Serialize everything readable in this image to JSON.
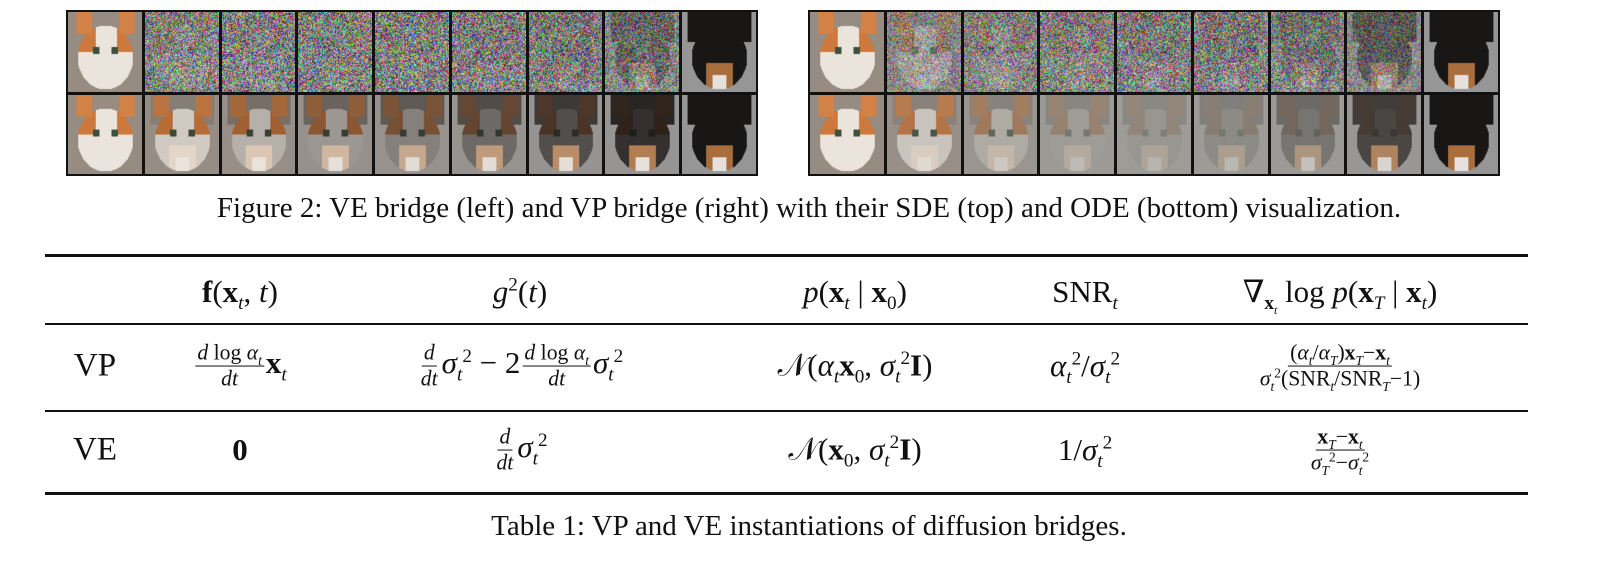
{
  "figure": {
    "caption": "Figure 2: VE bridge (left) and VP bridge (right) with their SDE (top) and ODE (bottom) visualization."
  },
  "table": {
    "caption": "Table 1: VP and VE instantiations of diffusion bridges.",
    "headers": [
      [
        ""
      ],
      [
        "*f*(*x*_t, t)"
      ],
      [
        "g^2(t)"
      ],
      [
        "p(*x*_t | *x*_0)"
      ],
      [
        "~SNR~_t"
      ],
      [
        "∇_{*x*_t} ~log~ p(*x*_T | *x*_t)"
      ]
    ],
    "rows": [
      {
        "label": "VP",
        "cells": [
          [
            {
              "frac": [
                "d ~log~ α_t",
                "dt"
              ]
            },
            "*x*_t"
          ],
          [
            {
              "frac": [
                "d",
                "dt"
              ]
            },
            "σ_t^2 − 2",
            {
              "frac": [
                "d ~log~ α_t",
                "dt"
              ]
            },
            "σ_t^2"
          ],
          [
            "𝒩(α_t*x*_0, σ_t^2*I*)"
          ],
          [
            "α_t^2/σ_t^2"
          ],
          [
            {
              "frac": [
                "(α_t/α_T)*x*_T−*x*_t",
                "σ_t^2(~SNR~_t/~SNR~_T−1)"
              ]
            }
          ]
        ]
      },
      {
        "label": "VE",
        "cells": [
          [
            "*0*"
          ],
          [
            {
              "frac": [
                "d",
                "dt"
              ]
            },
            "σ_t^2"
          ],
          [
            "𝒩(*x*_0, σ_t^2*I*)"
          ],
          [
            "1/σ_t^2"
          ],
          [
            {
              "frac": [
                "*x*_T−*x*_t",
                "σ_T^2−σ_t^2"
              ]
            }
          ]
        ]
      }
    ]
  }
}
